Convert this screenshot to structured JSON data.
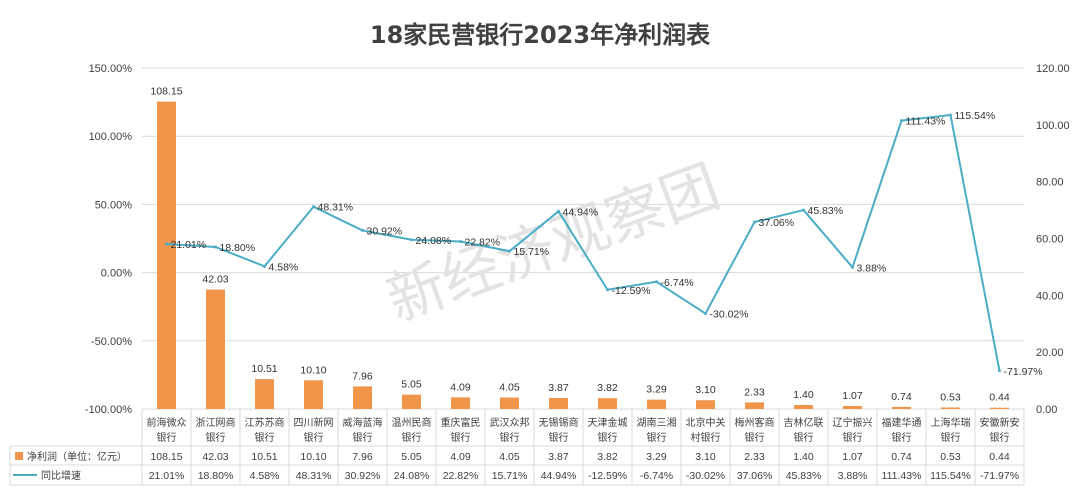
{
  "chart_data": {
    "type": "bar+line",
    "title": "18家民营银行2023年净利润表",
    "watermark": "新经济观察团",
    "categories": [
      [
        "前海微众",
        "银行"
      ],
      [
        "浙江网商",
        "银行"
      ],
      [
        "江苏苏商",
        "银行"
      ],
      [
        "四川新网",
        "银行"
      ],
      [
        "威海蓝海",
        "银行"
      ],
      [
        "温州民商",
        "银行"
      ],
      [
        "重庆富民",
        "银行"
      ],
      [
        "武汉众邦",
        "银行"
      ],
      [
        "无锡锡商",
        "银行"
      ],
      [
        "天津金城",
        "银行"
      ],
      [
        "湖南三湘",
        "银行"
      ],
      [
        "北京中关",
        "村银行"
      ],
      [
        "梅州客商",
        "银行"
      ],
      [
        "吉林亿联",
        "银行"
      ],
      [
        "辽宁振兴",
        "银行"
      ],
      [
        "福建华通",
        "银行"
      ],
      [
        "上海华瑞",
        "银行"
      ],
      [
        "安徽新安",
        "银行"
      ]
    ],
    "series": [
      {
        "name": "净利润（单位：亿元）",
        "type": "bar",
        "axis": "right",
        "color": "#F0954A",
        "values": [
          108.15,
          42.03,
          10.51,
          10.1,
          7.96,
          5.05,
          4.09,
          4.05,
          3.87,
          3.82,
          3.29,
          3.1,
          2.33,
          1.4,
          1.07,
          0.74,
          0.53,
          0.44
        ],
        "labels": [
          "108.15",
          "42.03",
          "10.51",
          "10.10",
          "7.96",
          "5.05",
          "4.09",
          "4.05",
          "3.87",
          "3.82",
          "3.29",
          "3.10",
          "2.33",
          "1.40",
          "1.07",
          "0.74",
          "0.53",
          "0.44"
        ]
      },
      {
        "name": "同比增速",
        "type": "line",
        "axis": "left",
        "color": "#4BACC6",
        "values": [
          21.01,
          18.8,
          4.58,
          48.31,
          30.92,
          24.08,
          22.82,
          15.71,
          44.94,
          -12.59,
          -6.74,
          -30.02,
          37.06,
          45.83,
          3.88,
          111.43,
          115.54,
          -71.97
        ],
        "labels": [
          "21.01%",
          "18.80%",
          "4.58%",
          "48.31%",
          "30.92%",
          "24.08%",
          "22.82%",
          "15.71%",
          "44.94%",
          "-12.59%",
          "-6.74%",
          "-30.02%",
          "37.06%",
          "45.83%",
          "3.88%",
          "111.43%",
          "115.54%",
          "-71.97%"
        ]
      }
    ],
    "y_left": {
      "ylim": [
        -100,
        150
      ],
      "ticks": [
        "150.00%",
        "100.00%",
        "50.00%",
        "0.00%",
        "-50.00%",
        "-100.00%"
      ]
    },
    "y_right": {
      "ylim": [
        0,
        120
      ],
      "ticks": [
        "120.00",
        "100.00",
        "80.00",
        "60.00",
        "40.00",
        "20.00",
        "0.00"
      ]
    },
    "grid": true,
    "legend": "data-table"
  }
}
